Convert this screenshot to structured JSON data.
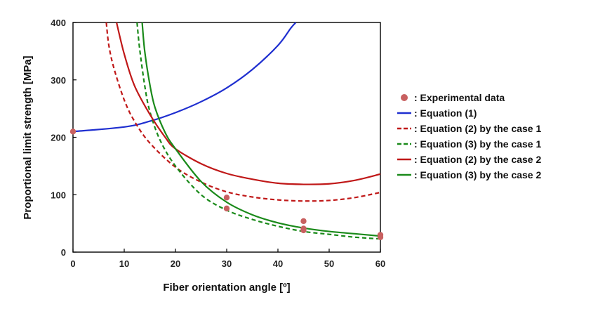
{
  "chart_data": {
    "type": "line",
    "title": "",
    "xlabel": "Fiber orientation angle [º]",
    "ylabel": "Proportional limit strength [MPa]",
    "xlim": [
      0,
      60
    ],
    "ylim": [
      0,
      400
    ],
    "xticks": [
      "0",
      "10",
      "20",
      "30",
      "40",
      "50",
      "60"
    ],
    "yticks": [
      "0",
      "100",
      "200",
      "300",
      "400"
    ],
    "grid": false,
    "legend_position": "right",
    "scatter": {
      "name": ": Experimental data",
      "color": "#c86060",
      "points": [
        {
          "x": 0,
          "y": 210
        },
        {
          "x": 30,
          "y": 95
        },
        {
          "x": 30,
          "y": 76
        },
        {
          "x": 45,
          "y": 54
        },
        {
          "x": 45,
          "y": 41
        },
        {
          "x": 45,
          "y": 38
        },
        {
          "x": 60,
          "y": 30
        },
        {
          "x": 60,
          "y": 26
        }
      ]
    },
    "series": [
      {
        "name": ": Equation (1)",
        "color": "#1f2fd0",
        "dash": false,
        "x": [
          0,
          10,
          15,
          20,
          25,
          30,
          35,
          40,
          42.5,
          43.5
        ],
        "y": [
          210,
          218,
          228,
          243,
          262,
          286,
          318,
          360,
          390,
          400
        ]
      },
      {
        "name": ": Equation (2) by the case 1",
        "color": "#c01818",
        "dash": true,
        "x": [
          6.5,
          7,
          8,
          10,
          12,
          15,
          20,
          25,
          30,
          35,
          40,
          45,
          50,
          55,
          60
        ],
        "y": [
          400,
          360,
          320,
          265,
          228,
          190,
          148,
          122,
          105,
          96,
          91,
          89,
          90,
          95,
          104
        ]
      },
      {
        "name": ": Equation (3) by the case 1",
        "color": "#1a8a1a",
        "dash": true,
        "x": [
          12.5,
          13,
          14,
          15,
          17,
          20,
          25,
          30,
          35,
          40,
          45,
          50,
          55,
          60
        ],
        "y": [
          400,
          355,
          290,
          245,
          195,
          150,
          100,
          73,
          57,
          45,
          36,
          31,
          26,
          23
        ]
      },
      {
        "name": ": Equation (2) by the case 2",
        "color": "#c01818",
        "dash": false,
        "x": [
          8.5,
          10,
          12,
          15,
          18,
          20,
          25,
          30,
          35,
          40,
          45,
          50,
          55,
          60
        ],
        "y": [
          400,
          345,
          290,
          240,
          200,
          180,
          154,
          137,
          127,
          120,
          118,
          119,
          125,
          136
        ]
      },
      {
        "name": ": Equation (3) by the case 2",
        "color": "#1a8a1a",
        "dash": false,
        "x": [
          13.5,
          14,
          15,
          16,
          18,
          20,
          25,
          30,
          35,
          40,
          45,
          50,
          55,
          60
        ],
        "y": [
          400,
          350,
          292,
          252,
          208,
          180,
          123,
          87,
          65,
          51,
          42,
          36,
          32,
          28
        ]
      }
    ]
  }
}
